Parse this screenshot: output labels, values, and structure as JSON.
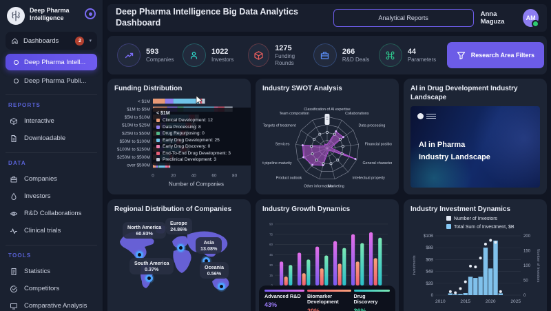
{
  "brand": {
    "name": "Deep Pharma Intelligence"
  },
  "header": {
    "title": "Deep Pharma Intelligence Big Data Analytics Dashboard",
    "reports_button": "Analytical Reports",
    "user_name": "Anna Maguza",
    "avatar_initials": "AM"
  },
  "sidebar": {
    "dashboards_label": "Dashboards",
    "dashboards_badge": "2",
    "dashboard_items": [
      {
        "label": "Deep Pharma Intell...",
        "active": true
      },
      {
        "label": "Deep Pharma Publi...",
        "active": false
      }
    ],
    "sections": [
      {
        "title": "REPORTS",
        "items": [
          {
            "label": "Interactive"
          },
          {
            "label": "Downloadable"
          }
        ]
      },
      {
        "title": "DATA",
        "items": [
          {
            "label": "Companies"
          },
          {
            "label": "Investors"
          },
          {
            "label": "R&D Collaborations"
          },
          {
            "label": "Clinical trials"
          }
        ]
      },
      {
        "title": "TOOLS",
        "items": [
          {
            "label": "Statistics"
          },
          {
            "label": "Competitors"
          },
          {
            "label": "Comparative Analysis"
          }
        ]
      }
    ]
  },
  "stats": [
    {
      "value": "593",
      "label": "Companies",
      "color": "#7b6cf6",
      "icon": "trend-up-icon"
    },
    {
      "value": "1022",
      "label": "Investors",
      "color": "#2fd3c6",
      "icon": "person-icon"
    },
    {
      "value": "1275",
      "label": "Funding Rounds",
      "color": "#e85d5d",
      "icon": "cube-icon"
    },
    {
      "value": "266",
      "label": "R&D Deals",
      "color": "#5b8ff9",
      "icon": "briefcase-icon"
    },
    {
      "value": "44",
      "label": "Parameters",
      "color": "#2ecc8f",
      "icon": "command-icon"
    }
  ],
  "filters_button": {
    "label": "Research Area Filters",
    "icon": "funnel-icon"
  },
  "cards": {
    "funding": {
      "title": "Funding Distribution"
    },
    "swot": {
      "title": "Industry SWOT Analysis"
    },
    "landscape": {
      "title": "AI in Drug Development Industry Landscape",
      "image_line1": "AI in Pharma",
      "image_line2": "Industry Landscape"
    },
    "regional": {
      "title": "Regional Distribution of Companies"
    },
    "growth": {
      "title": "Industry Growth Dynamics"
    },
    "investment": {
      "title": "Industry Investment Dynamics"
    }
  },
  "chart_data": [
    {
      "id": "funding",
      "type": "bar",
      "orientation": "horizontal",
      "stacked": true,
      "title": "Funding Distribution",
      "xlabel": "Number of Companies",
      "xticks": [
        0,
        20,
        40,
        60,
        80
      ],
      "xlim": [
        0,
        85
      ],
      "categories": [
        "< $1M",
        "$1M to $5M",
        "$5M to $10M",
        "$10M to $25M",
        "$25M to $50M",
        "$50M to $100M",
        "$100M to $250M",
        "$250M to $500M",
        "over $500M"
      ],
      "series": [
        {
          "name": "Clinical Development",
          "color": "#e89a77",
          "values": [
            12,
            14,
            8,
            8,
            6,
            5,
            6,
            4,
            3
          ]
        },
        {
          "name": "Data Processing",
          "color": "#8f7df0",
          "values": [
            8,
            10,
            6,
            5,
            5,
            4,
            5,
            3,
            2
          ]
        },
        {
          "name": "Drug Repurposing",
          "color": "#52b788",
          "values": [
            0,
            6,
            3,
            3,
            2,
            2,
            2,
            1,
            1
          ]
        },
        {
          "name": "Early Drug Development",
          "color": "#6fc3e8",
          "values": [
            25,
            30,
            18,
            16,
            14,
            12,
            14,
            8,
            6
          ]
        },
        {
          "name": "Early Drug Discovery",
          "color": "#ef7fae",
          "values": [
            0,
            4,
            2,
            2,
            2,
            2,
            2,
            1,
            2
          ]
        },
        {
          "name": "End-To-End Drug Development",
          "color": "#e85d75",
          "values": [
            3,
            6,
            4,
            4,
            3,
            2,
            4,
            2,
            2
          ]
        },
        {
          "name": "Preclinical Development",
          "color": "#c3cbd9",
          "values": [
            3,
            8,
            4,
            4,
            3,
            3,
            3,
            1,
            1
          ]
        }
      ],
      "tooltip": {
        "title": "< $1M",
        "row_index": 0
      }
    },
    {
      "id": "swot",
      "type": "radar",
      "title": "Industry SWOT Analysis",
      "rings": 4,
      "axes": [
        "Classification of AI expertise",
        "Collaborations",
        "Data processing",
        "Financial position",
        "General characteris",
        "Intellectual property",
        "Marketing",
        "Other information",
        "Product outlook",
        "duct pipeline maturity",
        "Services",
        "Targets of treatment",
        "Team composition"
      ],
      "series": [
        {
          "name": "SWOT profile",
          "color": "#b44fd6",
          "values": [
            0.12,
            0.6,
            0.62,
            0.12,
            0.95,
            0.08,
            0.12,
            0.55,
            0.7,
            0.8,
            0.78,
            0.12,
            0.15
          ]
        }
      ],
      "marker_ring": 0.5
    },
    {
      "id": "regional",
      "type": "map",
      "title": "Regional Distribution of Companies",
      "regions": [
        {
          "name": "North America",
          "value": "60.93%"
        },
        {
          "name": "Europe",
          "value": "24.86%"
        },
        {
          "name": "Asia",
          "value": "13.08%"
        },
        {
          "name": "South America",
          "value": "0.37%"
        },
        {
          "name": "Oceania",
          "value": "0.56%"
        }
      ]
    },
    {
      "id": "growth",
      "type": "bar",
      "grouped": true,
      "title": "Industry Growth Dynamics",
      "categories": [
        "2015",
        "2016",
        "2017",
        "2018",
        "2019",
        "2020"
      ],
      "yticks": [
        0,
        15,
        30,
        45,
        60,
        75,
        90
      ],
      "ylim": [
        0,
        95
      ],
      "series": [
        {
          "name": "Advanced R&D",
          "percent": "43%",
          "percent_color": "#9b7bf7",
          "color_top": "#e26ee8",
          "color_bottom": "#7a5cf0",
          "values": [
            35,
            48,
            57,
            65,
            75,
            78
          ]
        },
        {
          "name": "Biomarker Development",
          "percent": "20%",
          "percent_color": "#ef6a5f",
          "color_top": "#f9a27b",
          "color_bottom": "#ef5d6f",
          "values": [
            13,
            18,
            25,
            32,
            35,
            40
          ]
        },
        {
          "name": "Drug Discovery",
          "percent": "36%",
          "percent_color": "#3fd9a4",
          "color_top": "#7be8b4",
          "color_bottom": "#2bbfc9",
          "values": [
            30,
            38,
            44,
            55,
            62,
            70
          ]
        }
      ]
    },
    {
      "id": "investment",
      "type": "combo",
      "title": "Industry Investment Dynamics",
      "legend": [
        {
          "label": "Number of Investors",
          "color": "#dfe6f2"
        },
        {
          "label": "Total Sum of Investment, $B",
          "color": "#86c9f6"
        }
      ],
      "x": [
        2012,
        2013,
        2014,
        2015,
        2016,
        2017,
        2018,
        2019,
        2020,
        2021,
        2022
      ],
      "bars": {
        "name": "Total Sum of Investment, $B",
        "color": "#86c9f6",
        "values": [
          0.3,
          0.15,
          0.2,
          0.35,
          3.1,
          2.9,
          3.1,
          8.0,
          4.5,
          9.2,
          0.3
        ]
      },
      "dots": {
        "name": "Number of Investors",
        "color": "#e8edf6",
        "values": [
          12,
          8,
          22,
          45,
          98,
          95,
          125,
          172,
          185,
          178,
          12
        ]
      },
      "left_axis": {
        "label": "Investments",
        "ticks": [
          "$10B",
          "$8B",
          "$6B",
          "$4B",
          "$2B",
          "0"
        ],
        "max": 10
      },
      "right_axis": {
        "label": "Number of Investors",
        "ticks": [
          200,
          150,
          100,
          50,
          0
        ],
        "max": 200
      },
      "xticks": [
        2010,
        2015,
        2020,
        2025
      ],
      "xlim": [
        2009,
        2026
      ]
    }
  ]
}
